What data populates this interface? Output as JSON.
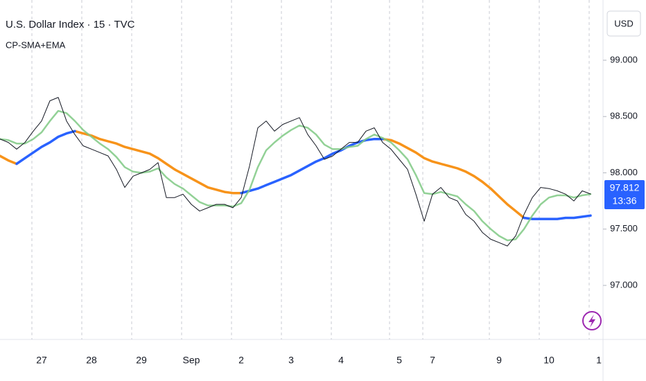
{
  "chart_data": {
    "type": "line",
    "title": "U.S. Dollar Index · 15 · TVC",
    "indicator": "CP-SMA+EMA",
    "currency": "USD",
    "countdown": "13:36",
    "categories": [
      null,
      null,
      null,
      null,
      null,
      "27",
      null,
      null,
      null,
      null,
      null,
      "28",
      null,
      null,
      null,
      null,
      null,
      "29",
      null,
      null,
      null,
      null,
      null,
      "Sep",
      null,
      null,
      null,
      null,
      null,
      "2",
      null,
      null,
      null,
      null,
      null,
      "3",
      null,
      null,
      null,
      null,
      null,
      "4",
      null,
      null,
      null,
      null,
      null,
      null,
      "5",
      null,
      null,
      null,
      "7",
      null,
      null,
      null,
      null,
      null,
      null,
      null,
      "9",
      null,
      null,
      null,
      null,
      null,
      "10",
      null,
      null,
      null,
      null,
      null,
      "1"
    ],
    "series": [
      {
        "color": "#131722",
        "values": [
          98.3,
          98.27,
          98.21,
          98.27,
          98.37,
          98.46,
          98.64,
          98.67,
          98.46,
          98.34,
          98.24,
          98.21,
          98.18,
          98.15,
          98.03,
          97.87,
          97.97,
          98.0,
          98.03,
          98.09,
          97.78,
          97.78,
          97.81,
          97.72,
          97.66,
          97.69,
          97.72,
          97.72,
          97.69,
          97.78,
          98.06,
          98.4,
          98.46,
          98.37,
          98.43,
          98.46,
          98.49,
          98.34,
          98.24,
          98.12,
          98.15,
          98.21,
          98.27,
          98.27,
          98.37,
          98.4,
          98.27,
          98.21,
          98.12,
          98.03,
          97.81,
          97.57,
          97.81,
          97.87,
          97.78,
          97.75,
          97.63,
          97.57,
          97.47,
          97.41,
          97.38,
          97.35,
          97.44,
          97.63,
          97.78,
          97.87,
          97.86,
          97.84,
          97.81,
          97.75,
          97.84,
          97.812,
          null
        ]
      },
      {
        "color": "#7fc984",
        "values": [
          98.3,
          98.29,
          98.26,
          98.26,
          98.3,
          98.36,
          98.46,
          98.55,
          98.53,
          98.46,
          98.38,
          98.32,
          98.26,
          98.21,
          98.14,
          98.05,
          98.01,
          98.0,
          98.01,
          98.04,
          97.96,
          97.9,
          97.86,
          97.8,
          97.74,
          97.71,
          97.71,
          97.71,
          97.7,
          97.73,
          97.85,
          98.05,
          98.2,
          98.27,
          98.33,
          98.38,
          98.42,
          98.4,
          98.34,
          98.25,
          98.21,
          98.21,
          98.23,
          98.24,
          98.3,
          98.34,
          98.31,
          98.27,
          98.2,
          98.12,
          97.98,
          97.82,
          97.81,
          97.83,
          97.81,
          97.79,
          97.72,
          97.66,
          97.57,
          97.5,
          97.44,
          97.4,
          97.41,
          97.5,
          97.62,
          97.72,
          97.78,
          97.8,
          97.8,
          97.78,
          97.8,
          97.81,
          null
        ]
      },
      {
        "color": "#f7931a",
        "values": [
          98.15,
          98.11,
          98.08,
          null,
          null,
          null,
          null,
          null,
          null,
          98.37,
          98.35,
          98.33,
          98.3,
          98.28,
          98.26,
          98.23,
          98.21,
          98.19,
          98.17,
          98.13,
          98.08,
          98.03,
          97.99,
          97.95,
          97.91,
          97.87,
          97.85,
          97.83,
          97.82,
          97.82,
          null,
          null,
          null,
          null,
          null,
          null,
          null,
          null,
          null,
          null,
          null,
          null,
          null,
          null,
          null,
          null,
          98.3,
          98.29,
          98.26,
          98.22,
          98.18,
          98.13,
          98.1,
          98.08,
          98.06,
          98.04,
          98.01,
          97.97,
          97.92,
          97.86,
          97.79,
          97.72,
          97.66,
          97.6,
          null,
          null,
          null,
          null,
          null,
          null,
          null,
          null,
          null
        ]
      },
      {
        "color": "#2962ff",
        "values": [
          null,
          null,
          98.08,
          98.13,
          98.18,
          98.23,
          98.27,
          98.32,
          98.35,
          98.37,
          null,
          null,
          null,
          null,
          null,
          null,
          null,
          null,
          null,
          null,
          null,
          null,
          null,
          null,
          null,
          null,
          null,
          null,
          null,
          97.82,
          97.84,
          97.86,
          97.89,
          97.92,
          97.95,
          97.98,
          98.02,
          98.06,
          98.1,
          98.13,
          98.17,
          98.2,
          98.24,
          98.27,
          98.29,
          98.3,
          98.3,
          null,
          null,
          null,
          null,
          null,
          null,
          null,
          null,
          null,
          null,
          null,
          null,
          null,
          null,
          null,
          null,
          97.6,
          97.59,
          97.59,
          97.59,
          97.59,
          97.6,
          97.6,
          97.61,
          97.62,
          null
        ]
      }
    ],
    "ylim": [
      96.52,
      99.535
    ],
    "yticks": [
      {
        "value": 97,
        "label": "97.000"
      },
      {
        "value": 97.5,
        "label": "97.500"
      },
      {
        "value": 98,
        "label": "98.000"
      },
      {
        "value": 98.5,
        "label": "98.500"
      },
      {
        "value": 99,
        "label": "99.000"
      }
    ],
    "grid": true,
    "badge_color": "#2962ff"
  }
}
